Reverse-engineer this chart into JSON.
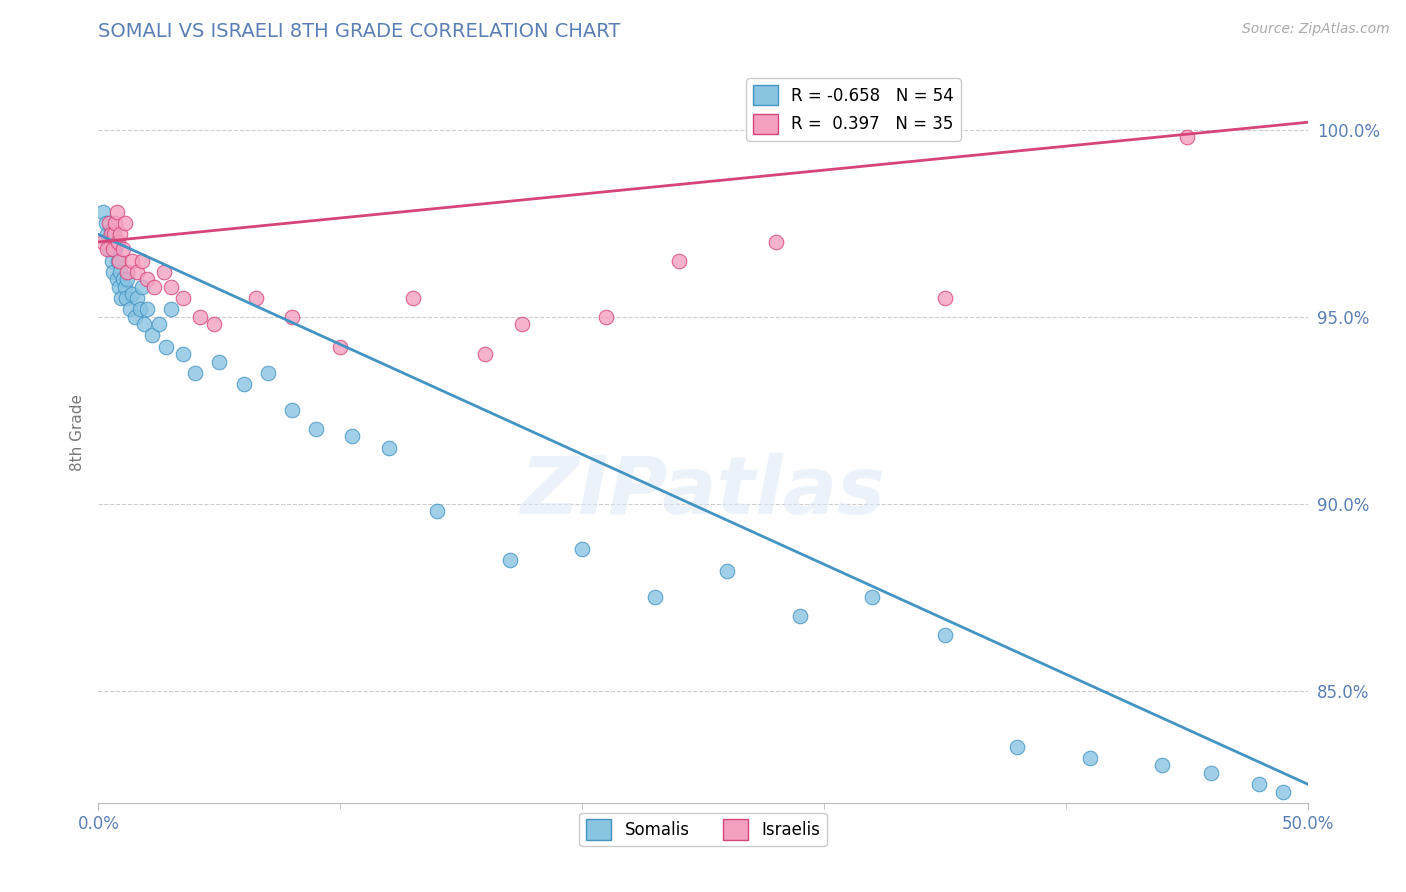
{
  "title": "SOMALI VS ISRAELI 8TH GRADE CORRELATION CHART",
  "source": "Source: ZipAtlas.com",
  "ylabel": "8th Grade",
  "xlim": [
    0.0,
    50.0
  ],
  "ylim": [
    82.0,
    101.8
  ],
  "yticks": [
    85.0,
    90.0,
    95.0,
    100.0
  ],
  "ytick_labels": [
    "85.0%",
    "90.0%",
    "95.0%",
    "100.0%"
  ],
  "somali_color": "#89c4e1",
  "israeli_color": "#f4a0c0",
  "somali_r": -0.658,
  "somali_n": 54,
  "israeli_r": 0.397,
  "israeli_n": 35,
  "somali_line_color": "#4393c3",
  "israeli_line_color": "#d6457a",
  "watermark": "ZIPatlas",
  "somali_line_x0": 0.0,
  "somali_line_y0": 97.2,
  "somali_line_x1": 50.0,
  "somali_line_y1": 82.5,
  "israeli_line_x0": 0.0,
  "israeli_line_y0": 97.0,
  "israeli_line_x1": 50.0,
  "israeli_line_y1": 100.2,
  "somali_x": [
    0.2,
    0.3,
    0.35,
    0.4,
    0.45,
    0.5,
    0.55,
    0.6,
    0.65,
    0.7,
    0.75,
    0.8,
    0.85,
    0.9,
    0.95,
    1.0,
    1.1,
    1.15,
    1.2,
    1.3,
    1.4,
    1.5,
    1.6,
    1.7,
    1.8,
    1.9,
    2.0,
    2.2,
    2.5,
    2.8,
    3.0,
    3.5,
    4.0,
    5.0,
    6.0,
    7.0,
    8.0,
    9.0,
    10.5,
    12.0,
    14.0,
    17.0,
    20.0,
    23.0,
    26.0,
    29.0,
    32.0,
    35.0,
    38.0,
    41.0,
    44.0,
    46.0,
    48.0,
    49.0
  ],
  "somali_y": [
    97.8,
    97.5,
    97.2,
    97.0,
    96.8,
    97.3,
    96.5,
    96.2,
    97.0,
    96.8,
    96.0,
    96.5,
    95.8,
    96.2,
    95.5,
    96.0,
    95.8,
    95.5,
    96.0,
    95.2,
    95.6,
    95.0,
    95.5,
    95.2,
    95.8,
    94.8,
    95.2,
    94.5,
    94.8,
    94.2,
    95.2,
    94.0,
    93.5,
    93.8,
    93.2,
    93.5,
    92.5,
    92.0,
    91.8,
    91.5,
    89.8,
    88.5,
    88.8,
    87.5,
    88.2,
    87.0,
    87.5,
    86.5,
    83.5,
    83.2,
    83.0,
    82.8,
    82.5,
    82.3
  ],
  "israeli_x": [
    0.2,
    0.35,
    0.45,
    0.5,
    0.6,
    0.65,
    0.7,
    0.75,
    0.8,
    0.85,
    0.9,
    1.0,
    1.1,
    1.2,
    1.4,
    1.6,
    1.8,
    2.0,
    2.3,
    2.7,
    3.0,
    3.5,
    4.2,
    4.8,
    6.5,
    8.0,
    10.0,
    13.0,
    16.0,
    17.5,
    21.0,
    24.0,
    28.0,
    35.0,
    45.0
  ],
  "israeli_y": [
    97.0,
    96.8,
    97.5,
    97.2,
    96.8,
    97.2,
    97.5,
    97.8,
    97.0,
    96.5,
    97.2,
    96.8,
    97.5,
    96.2,
    96.5,
    96.2,
    96.5,
    96.0,
    95.8,
    96.2,
    95.8,
    95.5,
    95.0,
    94.8,
    95.5,
    95.0,
    94.2,
    95.5,
    94.0,
    94.8,
    95.0,
    96.5,
    97.0,
    95.5,
    99.8
  ],
  "background_color": "#ffffff",
  "grid_color": "#cccccc",
  "title_color": "#5b7fb5",
  "axis_label_color": "#777777",
  "tick_label_color": "#5b7fb5"
}
